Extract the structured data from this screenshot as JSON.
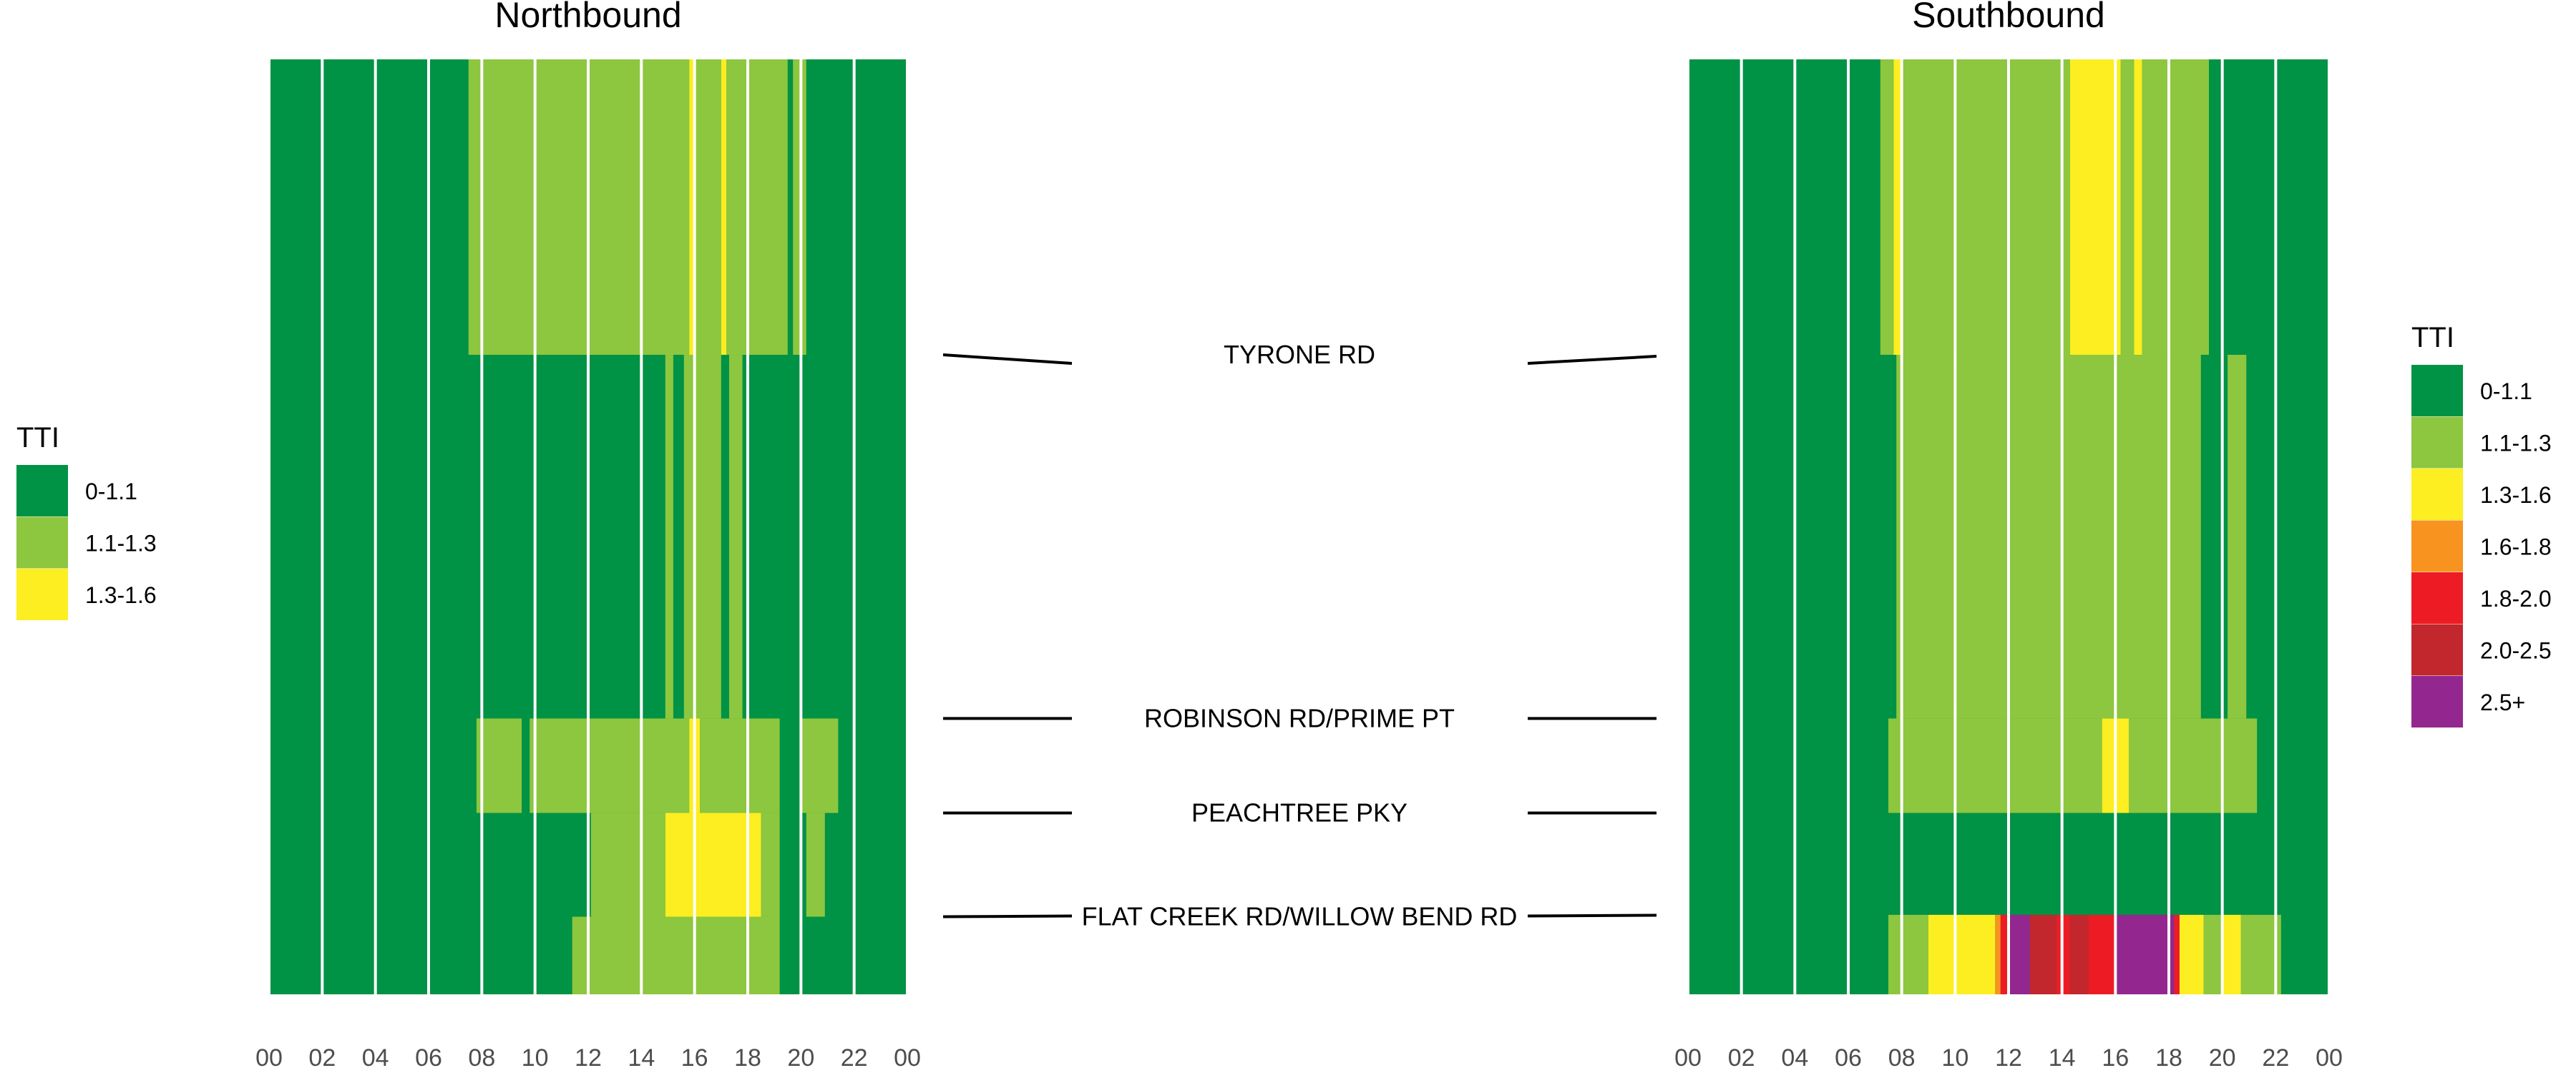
{
  "chart_data": [
    {
      "type": "heatmap",
      "title": "Northbound",
      "x_tick_labels": [
        "00",
        "02",
        "04",
        "06",
        "08",
        "10",
        "12",
        "14",
        "16",
        "18",
        "20",
        "22",
        "00"
      ],
      "xlim": [
        0,
        24
      ],
      "legend": {
        "title": "TTI",
        "position": "left",
        "categories": [
          {
            "label": "0-1.1",
            "color": "#009245"
          },
          {
            "label": "1.1-1.3",
            "color": "#8dc63f"
          },
          {
            "label": "1.3-1.6",
            "color": "#fcee21"
          }
        ]
      },
      "cells": [
        {
          "category": "1.1-1.3",
          "hour_start": 7.5,
          "hour_end": 15.8,
          "seg_start": 0.0,
          "seg_end": 0.316
        },
        {
          "category": "1.3-1.6",
          "hour_start": 15.8,
          "hour_end": 16.0,
          "seg_start": 0.0,
          "seg_end": 0.316
        },
        {
          "category": "1.1-1.3",
          "hour_start": 16.0,
          "hour_end": 17.0,
          "seg_start": 0.0,
          "seg_end": 0.316
        },
        {
          "category": "1.3-1.6",
          "hour_start": 17.0,
          "hour_end": 17.2,
          "seg_start": 0.0,
          "seg_end": 0.316
        },
        {
          "category": "1.1-1.3",
          "hour_start": 17.2,
          "hour_end": 19.5,
          "seg_start": 0.0,
          "seg_end": 0.316
        },
        {
          "category": "1.1-1.3",
          "hour_start": 19.7,
          "hour_end": 20.2,
          "seg_start": 0.0,
          "seg_end": 0.316
        },
        {
          "category": "1.1-1.3",
          "hour_start": 14.9,
          "hour_end": 15.2,
          "seg_start": 0.316,
          "seg_end": 0.705
        },
        {
          "category": "1.1-1.3",
          "hour_start": 15.6,
          "hour_end": 17.0,
          "seg_start": 0.316,
          "seg_end": 0.705
        },
        {
          "category": "1.1-1.3",
          "hour_start": 17.3,
          "hour_end": 17.8,
          "seg_start": 0.316,
          "seg_end": 0.705
        },
        {
          "category": "1.1-1.3",
          "hour_start": 7.8,
          "hour_end": 9.5,
          "seg_start": 0.705,
          "seg_end": 0.806
        },
        {
          "category": "1.1-1.3",
          "hour_start": 9.8,
          "hour_end": 15.8,
          "seg_start": 0.705,
          "seg_end": 0.806
        },
        {
          "category": "1.3-1.6",
          "hour_start": 15.8,
          "hour_end": 16.2,
          "seg_start": 0.705,
          "seg_end": 0.806
        },
        {
          "category": "1.1-1.3",
          "hour_start": 16.2,
          "hour_end": 19.2,
          "seg_start": 0.705,
          "seg_end": 0.806
        },
        {
          "category": "1.1-1.3",
          "hour_start": 20.0,
          "hour_end": 21.4,
          "seg_start": 0.705,
          "seg_end": 0.806
        },
        {
          "category": "1.1-1.3",
          "hour_start": 12.1,
          "hour_end": 14.9,
          "seg_start": 0.806,
          "seg_end": 0.917
        },
        {
          "category": "1.3-1.6",
          "hour_start": 14.9,
          "hour_end": 18.5,
          "seg_start": 0.806,
          "seg_end": 0.917
        },
        {
          "category": "1.1-1.3",
          "hour_start": 18.5,
          "hour_end": 19.2,
          "seg_start": 0.806,
          "seg_end": 0.917
        },
        {
          "category": "1.1-1.3",
          "hour_start": 20.2,
          "hour_end": 20.9,
          "seg_start": 0.806,
          "seg_end": 0.917
        },
        {
          "category": "1.1-1.3",
          "hour_start": 11.4,
          "hour_end": 19.2,
          "seg_start": 0.917,
          "seg_end": 1.0
        }
      ]
    },
    {
      "type": "heatmap",
      "title": "Southbound",
      "x_tick_labels": [
        "00",
        "02",
        "04",
        "06",
        "08",
        "10",
        "12",
        "14",
        "16",
        "18",
        "20",
        "22",
        "00"
      ],
      "xlim": [
        0,
        24
      ],
      "legend": {
        "title": "TTI",
        "position": "right",
        "categories": [
          {
            "label": "0-1.1",
            "color": "#009245"
          },
          {
            "label": "1.1-1.3",
            "color": "#8dc63f"
          },
          {
            "label": "1.3-1.6",
            "color": "#fcee21"
          },
          {
            "label": "1.6-1.8",
            "color": "#f7931e"
          },
          {
            "label": "1.8-2.0",
            "color": "#ed1c24"
          },
          {
            "label": "2.0-2.5",
            "color": "#c1272d"
          },
          {
            "label": "2.5+",
            "color": "#93278f"
          }
        ]
      },
      "cells": [
        {
          "category": "1.1-1.3",
          "hour_start": 7.2,
          "hour_end": 7.7,
          "seg_start": 0.0,
          "seg_end": 0.316
        },
        {
          "category": "1.3-1.6",
          "hour_start": 7.7,
          "hour_end": 8.0,
          "seg_start": 0.0,
          "seg_end": 0.316
        },
        {
          "category": "1.1-1.3",
          "hour_start": 8.0,
          "hour_end": 14.3,
          "seg_start": 0.0,
          "seg_end": 0.316
        },
        {
          "category": "1.3-1.6",
          "hour_start": 14.3,
          "hour_end": 16.2,
          "seg_start": 0.0,
          "seg_end": 0.316
        },
        {
          "category": "1.1-1.3",
          "hour_start": 16.2,
          "hour_end": 16.7,
          "seg_start": 0.0,
          "seg_end": 0.316
        },
        {
          "category": "1.3-1.6",
          "hour_start": 16.7,
          "hour_end": 17.0,
          "seg_start": 0.0,
          "seg_end": 0.316
        },
        {
          "category": "1.1-1.3",
          "hour_start": 17.0,
          "hour_end": 19.5,
          "seg_start": 0.0,
          "seg_end": 0.316
        },
        {
          "category": "1.1-1.3",
          "hour_start": 7.8,
          "hour_end": 19.2,
          "seg_start": 0.316,
          "seg_end": 0.705
        },
        {
          "category": "1.1-1.3",
          "hour_start": 20.2,
          "hour_end": 20.9,
          "seg_start": 0.316,
          "seg_end": 0.705
        },
        {
          "category": "1.1-1.3",
          "hour_start": 7.5,
          "hour_end": 15.5,
          "seg_start": 0.705,
          "seg_end": 0.806
        },
        {
          "category": "1.3-1.6",
          "hour_start": 15.5,
          "hour_end": 16.5,
          "seg_start": 0.705,
          "seg_end": 0.806
        },
        {
          "category": "1.1-1.3",
          "hour_start": 16.5,
          "hour_end": 21.3,
          "seg_start": 0.705,
          "seg_end": 0.806
        },
        {
          "category": "1.1-1.3",
          "hour_start": 7.5,
          "hour_end": 9.0,
          "seg_start": 0.915,
          "seg_end": 1.0
        },
        {
          "category": "1.3-1.6",
          "hour_start": 9.0,
          "hour_end": 11.5,
          "seg_start": 0.915,
          "seg_end": 1.0
        },
        {
          "category": "1.6-1.8",
          "hour_start": 11.5,
          "hour_end": 11.7,
          "seg_start": 0.915,
          "seg_end": 1.0
        },
        {
          "category": "1.8-2.0",
          "hour_start": 11.7,
          "hour_end": 12.0,
          "seg_start": 0.915,
          "seg_end": 1.0
        },
        {
          "category": "2.5+",
          "hour_start": 12.0,
          "hour_end": 12.8,
          "seg_start": 0.915,
          "seg_end": 1.0
        },
        {
          "category": "2.0-2.5",
          "hour_start": 12.8,
          "hour_end": 13.8,
          "seg_start": 0.915,
          "seg_end": 1.0
        },
        {
          "category": "1.8-2.0",
          "hour_start": 13.8,
          "hour_end": 14.3,
          "seg_start": 0.915,
          "seg_end": 1.0
        },
        {
          "category": "2.0-2.5",
          "hour_start": 14.3,
          "hour_end": 15.0,
          "seg_start": 0.915,
          "seg_end": 1.0
        },
        {
          "category": "1.8-2.0",
          "hour_start": 15.0,
          "hour_end": 16.0,
          "seg_start": 0.915,
          "seg_end": 1.0
        },
        {
          "category": "2.5+",
          "hour_start": 16.0,
          "hour_end": 18.2,
          "seg_start": 0.915,
          "seg_end": 1.0
        },
        {
          "category": "1.8-2.0",
          "hour_start": 18.2,
          "hour_end": 18.4,
          "seg_start": 0.915,
          "seg_end": 1.0
        },
        {
          "category": "1.3-1.6",
          "hour_start": 18.4,
          "hour_end": 19.3,
          "seg_start": 0.915,
          "seg_end": 1.0
        },
        {
          "category": "1.1-1.3",
          "hour_start": 19.3,
          "hour_end": 20.0,
          "seg_start": 0.915,
          "seg_end": 1.0
        },
        {
          "category": "1.3-1.6",
          "hour_start": 20.0,
          "hour_end": 20.7,
          "seg_start": 0.915,
          "seg_end": 1.0
        },
        {
          "category": "1.1-1.3",
          "hour_start": 20.7,
          "hour_end": 22.2,
          "seg_start": 0.915,
          "seg_end": 1.0
        }
      ]
    }
  ],
  "road_labels": [
    {
      "label": "TYRONE RD",
      "segment_position": 0.316
    },
    {
      "label": "ROBINSON RD/PRIME PT",
      "segment_position": 0.705
    },
    {
      "label": "PEACHTREE PKY",
      "segment_position": 0.806
    },
    {
      "label": "FLAT CREEK RD/WILLOW BEND RD",
      "segment_position": 0.917
    }
  ],
  "base_category": "0-1.1"
}
